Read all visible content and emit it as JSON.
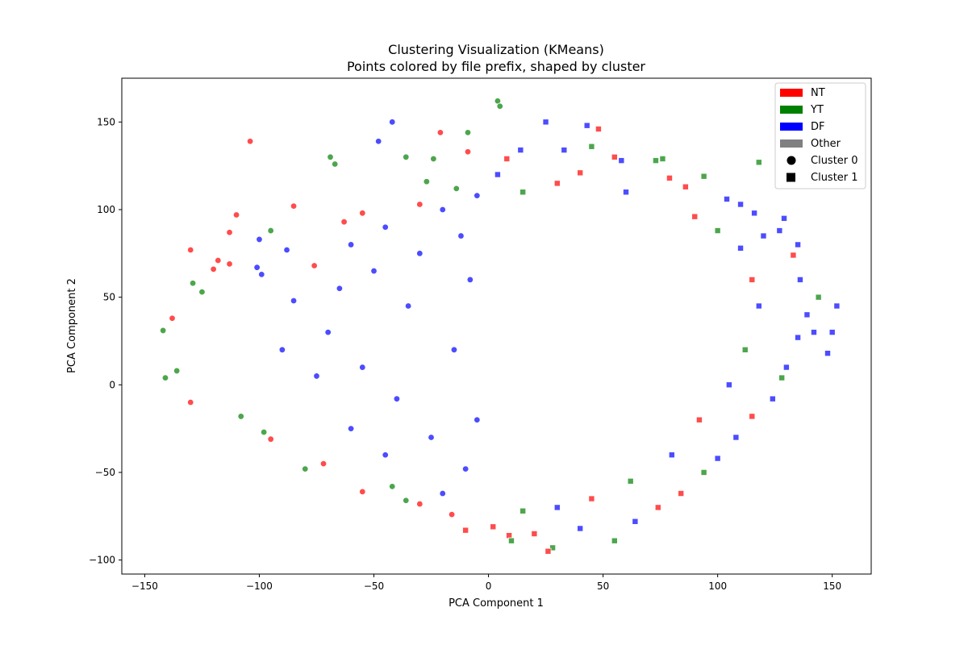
{
  "chart_data": {
    "type": "scatter",
    "title": "Clustering Visualization (KMeans)",
    "subtitle": "Points colored by file prefix, shaped by cluster",
    "xlabel": "PCA Component 1",
    "ylabel": "PCA Component 2",
    "xlim": [
      -160,
      167
    ],
    "ylim": [
      -108,
      175
    ],
    "xticks": [
      -150,
      -100,
      -50,
      0,
      50,
      100,
      150
    ],
    "yticks": [
      -100,
      -50,
      0,
      50,
      100,
      150
    ],
    "grid": false,
    "legend_position": "top-right",
    "legend": {
      "colors": [
        {
          "name": "NT",
          "color": "#ff0000"
        },
        {
          "name": "YT",
          "color": "#008000"
        },
        {
          "name": "DF",
          "color": "#0000ff"
        },
        {
          "name": "Other",
          "color": "#808080"
        }
      ],
      "shapes": [
        {
          "name": "Cluster 0",
          "shape": "circle"
        },
        {
          "name": "Cluster 1",
          "shape": "square"
        }
      ]
    },
    "point_alpha": 0.7,
    "edge_color": "#ffffff",
    "series": [
      {
        "name": "Cluster 0",
        "shape": "circle",
        "points": [
          {
            "x": -104,
            "y": 139,
            "c": "NT"
          },
          {
            "x": -110,
            "y": 97,
            "c": "NT"
          },
          {
            "x": -113,
            "y": 87,
            "c": "NT"
          },
          {
            "x": -118,
            "y": 71,
            "c": "NT"
          },
          {
            "x": -130,
            "y": 77,
            "c": "NT"
          },
          {
            "x": -120,
            "y": 66,
            "c": "NT"
          },
          {
            "x": -113,
            "y": 69,
            "c": "NT"
          },
          {
            "x": -85,
            "y": 102,
            "c": "NT"
          },
          {
            "x": -21,
            "y": 144,
            "c": "NT"
          },
          {
            "x": -9,
            "y": 133,
            "c": "NT"
          },
          {
            "x": 4,
            "y": 162,
            "c": "YT"
          },
          {
            "x": 5,
            "y": 159,
            "c": "YT"
          },
          {
            "x": -9,
            "y": 144,
            "c": "YT"
          },
          {
            "x": -69,
            "y": 130,
            "c": "YT"
          },
          {
            "x": -67,
            "y": 126,
            "c": "YT"
          },
          {
            "x": -36,
            "y": 130,
            "c": "YT"
          },
          {
            "x": -24,
            "y": 129,
            "c": "YT"
          },
          {
            "x": -42,
            "y": 150,
            "c": "DF"
          },
          {
            "x": -48,
            "y": 139,
            "c": "DF"
          },
          {
            "x": -100,
            "y": 83,
            "c": "DF"
          },
          {
            "x": -101,
            "y": 67,
            "c": "DF"
          },
          {
            "x": -99,
            "y": 63,
            "c": "DF"
          },
          {
            "x": -138,
            "y": 38,
            "c": "NT"
          },
          {
            "x": -142,
            "y": 31,
            "c": "YT"
          },
          {
            "x": -141,
            "y": 4,
            "c": "YT"
          },
          {
            "x": -136,
            "y": 8,
            "c": "YT"
          },
          {
            "x": -130,
            "y": -10,
            "c": "NT"
          },
          {
            "x": -129,
            "y": 58,
            "c": "YT"
          },
          {
            "x": -125,
            "y": 53,
            "c": "YT"
          },
          {
            "x": -95,
            "y": 88,
            "c": "YT"
          },
          {
            "x": -76,
            "y": 68,
            "c": "NT"
          },
          {
            "x": -63,
            "y": 93,
            "c": "NT"
          },
          {
            "x": -55,
            "y": 98,
            "c": "NT"
          },
          {
            "x": -30,
            "y": 103,
            "c": "NT"
          },
          {
            "x": -27,
            "y": 116,
            "c": "YT"
          },
          {
            "x": -14,
            "y": 112,
            "c": "YT"
          },
          {
            "x": -60,
            "y": 80,
            "c": "DF"
          },
          {
            "x": -20,
            "y": 100,
            "c": "DF"
          },
          {
            "x": -45,
            "y": 90,
            "c": "DF"
          },
          {
            "x": -5,
            "y": 108,
            "c": "DF"
          },
          {
            "x": -88,
            "y": 77,
            "c": "DF"
          },
          {
            "x": -16,
            "y": -74,
            "c": "NT"
          },
          {
            "x": -30,
            "y": -68,
            "c": "NT"
          },
          {
            "x": -55,
            "y": -61,
            "c": "NT"
          },
          {
            "x": -42,
            "y": -58,
            "c": "YT"
          },
          {
            "x": -36,
            "y": -66,
            "c": "YT"
          },
          {
            "x": -80,
            "y": -48,
            "c": "YT"
          },
          {
            "x": -98,
            "y": -27,
            "c": "YT"
          },
          {
            "x": -108,
            "y": -18,
            "c": "YT"
          },
          {
            "x": -95,
            "y": -31,
            "c": "NT"
          },
          {
            "x": -72,
            "y": -45,
            "c": "NT"
          },
          {
            "x": -20,
            "y": -62,
            "c": "DF"
          },
          {
            "x": -10,
            "y": -48,
            "c": "DF"
          },
          {
            "x": -25,
            "y": -30,
            "c": "DF"
          },
          {
            "x": -40,
            "y": -8,
            "c": "DF"
          },
          {
            "x": -55,
            "y": 10,
            "c": "DF"
          },
          {
            "x": -70,
            "y": 30,
            "c": "DF"
          },
          {
            "x": -85,
            "y": 48,
            "c": "DF"
          },
          {
            "x": -35,
            "y": 45,
            "c": "DF"
          },
          {
            "x": -15,
            "y": 20,
            "c": "DF"
          },
          {
            "x": -8,
            "y": 60,
            "c": "DF"
          },
          {
            "x": -50,
            "y": 65,
            "c": "DF"
          },
          {
            "x": -65,
            "y": 55,
            "c": "DF"
          },
          {
            "x": -30,
            "y": 75,
            "c": "DF"
          },
          {
            "x": -12,
            "y": 85,
            "c": "DF"
          },
          {
            "x": -5,
            "y": -20,
            "c": "DF"
          },
          {
            "x": -45,
            "y": -40,
            "c": "DF"
          },
          {
            "x": -60,
            "y": -25,
            "c": "DF"
          },
          {
            "x": -75,
            "y": 5,
            "c": "DF"
          },
          {
            "x": -90,
            "y": 20,
            "c": "DF"
          }
        ]
      },
      {
        "name": "Cluster 1",
        "shape": "square",
        "points": [
          {
            "x": 25,
            "y": 150,
            "c": "DF"
          },
          {
            "x": 43,
            "y": 148,
            "c": "DF"
          },
          {
            "x": 48,
            "y": 146,
            "c": "NT"
          },
          {
            "x": 55,
            "y": 130,
            "c": "NT"
          },
          {
            "x": 45,
            "y": 136,
            "c": "YT"
          },
          {
            "x": 76,
            "y": 129,
            "c": "YT"
          },
          {
            "x": 73,
            "y": 128,
            "c": "YT"
          },
          {
            "x": 118,
            "y": 127,
            "c": "YT"
          },
          {
            "x": 94,
            "y": 119,
            "c": "YT"
          },
          {
            "x": 14,
            "y": 134,
            "c": "DF"
          },
          {
            "x": 33,
            "y": 134,
            "c": "DF"
          },
          {
            "x": 58,
            "y": 128,
            "c": "DF"
          },
          {
            "x": 8,
            "y": 129,
            "c": "NT"
          },
          {
            "x": 40,
            "y": 121,
            "c": "NT"
          },
          {
            "x": 79,
            "y": 118,
            "c": "NT"
          },
          {
            "x": 86,
            "y": 113,
            "c": "NT"
          },
          {
            "x": 104,
            "y": 106,
            "c": "DF"
          },
          {
            "x": 110,
            "y": 103,
            "c": "DF"
          },
          {
            "x": 116,
            "y": 98,
            "c": "DF"
          },
          {
            "x": 129,
            "y": 95,
            "c": "DF"
          },
          {
            "x": 127,
            "y": 88,
            "c": "DF"
          },
          {
            "x": 135,
            "y": 80,
            "c": "DF"
          },
          {
            "x": 120,
            "y": 85,
            "c": "DF"
          },
          {
            "x": 133,
            "y": 74,
            "c": "NT"
          },
          {
            "x": 136,
            "y": 60,
            "c": "DF"
          },
          {
            "x": 144,
            "y": 50,
            "c": "YT"
          },
          {
            "x": 152,
            "y": 45,
            "c": "DF"
          },
          {
            "x": 139,
            "y": 40,
            "c": "DF"
          },
          {
            "x": 142,
            "y": 30,
            "c": "DF"
          },
          {
            "x": 150,
            "y": 30,
            "c": "DF"
          },
          {
            "x": 148,
            "y": 18,
            "c": "DF"
          },
          {
            "x": 135,
            "y": 27,
            "c": "DF"
          },
          {
            "x": 130,
            "y": 10,
            "c": "DF"
          },
          {
            "x": 128,
            "y": 4,
            "c": "YT"
          },
          {
            "x": 124,
            "y": -8,
            "c": "DF"
          },
          {
            "x": 115,
            "y": -18,
            "c": "NT"
          },
          {
            "x": 108,
            "y": -30,
            "c": "DF"
          },
          {
            "x": 100,
            "y": -42,
            "c": "DF"
          },
          {
            "x": 94,
            "y": -50,
            "c": "YT"
          },
          {
            "x": 84,
            "y": -62,
            "c": "NT"
          },
          {
            "x": 74,
            "y": -70,
            "c": "NT"
          },
          {
            "x": 64,
            "y": -78,
            "c": "DF"
          },
          {
            "x": 55,
            "y": -89,
            "c": "YT"
          },
          {
            "x": 40,
            "y": -82,
            "c": "DF"
          },
          {
            "x": 28,
            "y": -93,
            "c": "YT"
          },
          {
            "x": 26,
            "y": -95,
            "c": "NT"
          },
          {
            "x": 20,
            "y": -85,
            "c": "NT"
          },
          {
            "x": 9,
            "y": -86,
            "c": "NT"
          },
          {
            "x": 10,
            "y": -89,
            "c": "YT"
          },
          {
            "x": 2,
            "y": -81,
            "c": "NT"
          },
          {
            "x": -10,
            "y": -83,
            "c": "NT"
          },
          {
            "x": 4,
            "y": 120,
            "c": "DF"
          },
          {
            "x": 15,
            "y": 110,
            "c": "YT"
          },
          {
            "x": 30,
            "y": 115,
            "c": "NT"
          },
          {
            "x": 60,
            "y": 110,
            "c": "DF"
          },
          {
            "x": 90,
            "y": 96,
            "c": "NT"
          },
          {
            "x": 100,
            "y": 88,
            "c": "YT"
          },
          {
            "x": 110,
            "y": 78,
            "c": "DF"
          },
          {
            "x": 115,
            "y": 60,
            "c": "NT"
          },
          {
            "x": 118,
            "y": 45,
            "c": "DF"
          },
          {
            "x": 112,
            "y": 20,
            "c": "YT"
          },
          {
            "x": 105,
            "y": 0,
            "c": "DF"
          },
          {
            "x": 92,
            "y": -20,
            "c": "NT"
          },
          {
            "x": 80,
            "y": -40,
            "c": "DF"
          },
          {
            "x": 62,
            "y": -55,
            "c": "YT"
          },
          {
            "x": 45,
            "y": -65,
            "c": "NT"
          },
          {
            "x": 30,
            "y": -70,
            "c": "DF"
          },
          {
            "x": 15,
            "y": -72,
            "c": "YT"
          }
        ]
      }
    ]
  }
}
